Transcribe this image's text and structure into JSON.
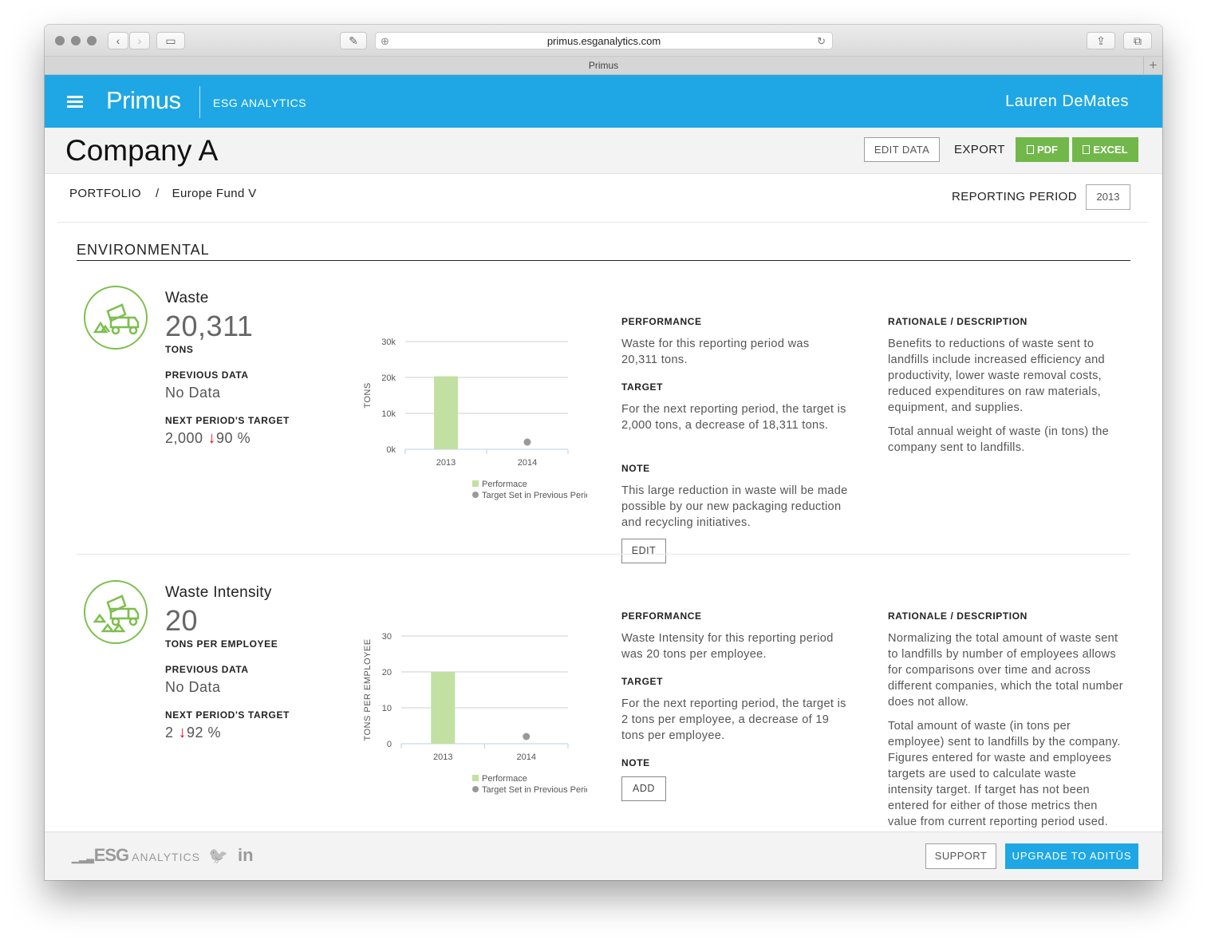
{
  "browser": {
    "url": "primus.esganalytics.com",
    "tab_title": "Primus",
    "tab_plus": "+"
  },
  "header": {
    "brand": "Primus",
    "subtitle": "ESG ANALYTICS",
    "user": "Lauren DeMates"
  },
  "company": {
    "title": "Company A",
    "edit_data": "EDIT DATA",
    "export_label": "EXPORT",
    "pdf": "PDF",
    "excel": "EXCEL"
  },
  "breadcrumb": {
    "root": "PORTFOLIO",
    "separator": "/",
    "current": "Europe Fund V"
  },
  "reporting_period": {
    "label": "REPORTING PERIOD",
    "value": "2013"
  },
  "section": {
    "title": "ENVIRONMENTAL"
  },
  "metrics": [
    {
      "name": "Waste",
      "value": "20,311",
      "unit": "TONS",
      "previous_label": "PREVIOUS DATA",
      "previous_value": "No Data",
      "target_label": "NEXT PERIOD'S TARGET",
      "target_value": "2,000",
      "target_change": "90 %",
      "performance_heading": "PERFORMANCE",
      "performance_text": "Waste for this reporting period was 20,311 tons.",
      "target_heading": "TARGET",
      "target_text": "For the next reporting period, the target is 2,000 tons, a decrease of 18,311 tons.",
      "note_heading": "NOTE",
      "note_text": "This large reduction in waste will be made possible by our new packaging reduction and recycling initiatives.",
      "note_button": "EDIT",
      "rationale_heading": "RATIONALE / DESCRIPTION",
      "rationale_p1": "Benefits to reductions of waste sent to landfills include increased efficiency and productivity, lower waste removal costs, reduced expenditures on raw materials, equipment, and supplies.",
      "rationale_p2": "Total annual weight of waste (in tons) the company sent to landfills."
    },
    {
      "name": "Waste Intensity",
      "value": "20",
      "unit": "TONS PER EMPLOYEE",
      "previous_label": "PREVIOUS DATA",
      "previous_value": "No Data",
      "target_label": "NEXT PERIOD'S TARGET",
      "target_value": "2",
      "target_change": "92 %",
      "performance_heading": "PERFORMANCE",
      "performance_text": "Waste Intensity for this reporting period was 20 tons per employee.",
      "target_heading": "TARGET",
      "target_text": "For the next reporting period, the target is 2 tons per employee, a decrease of 19 tons per employee.",
      "note_heading": "NOTE",
      "note_button": "ADD",
      "rationale_heading": "RATIONALE / DESCRIPTION",
      "rationale_p1": "Normalizing the total amount of waste sent to landfills by number of employees allows for comparisons over time and across different companies, which the total number does not allow.",
      "rationale_p2": "Total amount of waste (in tons per employee) sent to landfills by the company. Figures entered for waste and employees targets are used to calculate waste intensity target. If target has not been entered for either of those metrics then value from current reporting period used."
    }
  ],
  "chart_data": [
    {
      "type": "bar",
      "title": "",
      "xlabel": "",
      "ylabel": "TONS",
      "categories": [
        "2013",
        "2014"
      ],
      "ylim": [
        0,
        30000
      ],
      "yticks": [
        0,
        10000,
        20000,
        30000
      ],
      "ytick_labels": [
        "0k",
        "10k",
        "20k",
        "30k"
      ],
      "series": [
        {
          "name": "Performace",
          "kind": "bar",
          "color": "#c2e0a1",
          "values": [
            20311,
            null
          ]
        },
        {
          "name": "Target Set in Previous Period",
          "kind": "point",
          "color": "#999999",
          "values": [
            null,
            2000
          ]
        }
      ]
    },
    {
      "type": "bar",
      "title": "",
      "xlabel": "",
      "ylabel": "TONS PER EMPLOYEE",
      "categories": [
        "2013",
        "2014"
      ],
      "ylim": [
        0,
        30
      ],
      "yticks": [
        0,
        10,
        20,
        30
      ],
      "ytick_labels": [
        "0",
        "10",
        "20",
        "30"
      ],
      "series": [
        {
          "name": "Performace",
          "kind": "bar",
          "color": "#c2e0a1",
          "values": [
            20,
            null
          ]
        },
        {
          "name": "Target Set in Previous Period",
          "kind": "point",
          "color": "#999999",
          "values": [
            null,
            2
          ]
        }
      ]
    }
  ],
  "footer": {
    "logo_main": "ESG",
    "logo_sub": "ANALYTICS",
    "twitter": "🐦",
    "linkedin": "in",
    "support": "SUPPORT",
    "upgrade": "UPGRADE TO ADITŪS"
  },
  "colors": {
    "brand_blue": "#1ea7e4",
    "export_green": "#71b74a",
    "icon_green": "#7cbf4c",
    "bar_green": "#c2e0a1",
    "decrease_red": "#e0161e"
  }
}
